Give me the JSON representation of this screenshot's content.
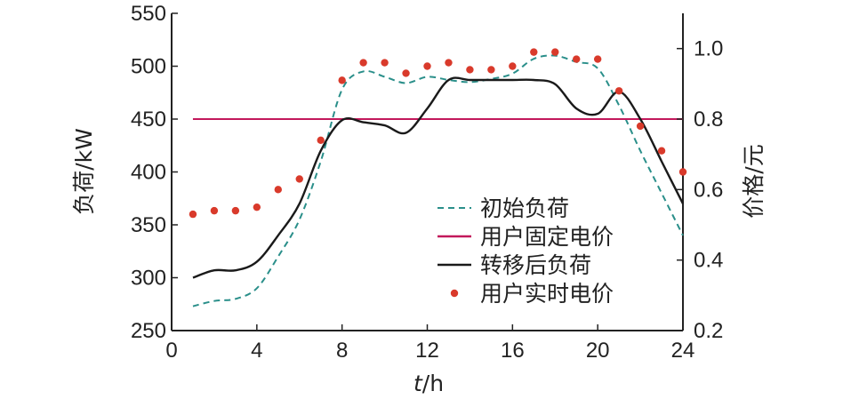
{
  "chart_data": {
    "type": "line",
    "xlabel_italic": "t",
    "xlabel_unit": "/h",
    "ylabel_left": "负荷/kW",
    "ylabel_right": "价格/元",
    "xlim": [
      0,
      24
    ],
    "ylim_left": [
      250,
      550
    ],
    "ylim_right": [
      0.2,
      1.1
    ],
    "xticks": [
      0,
      4,
      8,
      12,
      16,
      20,
      24
    ],
    "yticks_left": [
      250,
      300,
      350,
      400,
      450,
      500,
      550
    ],
    "yticks_right": [
      "0.2",
      "0.4",
      "0.6",
      "0.8",
      "1.0"
    ],
    "x": [
      1,
      2,
      3,
      4,
      5,
      6,
      7,
      8,
      9,
      10,
      11,
      12,
      13,
      14,
      15,
      16,
      17,
      18,
      19,
      20,
      21,
      22,
      23,
      24
    ],
    "series": [
      {
        "name": "初始负荷",
        "axis": "left",
        "style": "dashed",
        "color": "#2a8f8a",
        "values": [
          273,
          278,
          280,
          290,
          320,
          355,
          410,
          478,
          495,
          490,
          484,
          490,
          487,
          485,
          488,
          493,
          507,
          510,
          504,
          498,
          463,
          420,
          380,
          340
        ]
      },
      {
        "name": "用户固定电价",
        "axis": "right",
        "style": "solid",
        "color": "#c2185b",
        "values": [
          0.8,
          0.8,
          0.8,
          0.8,
          0.8,
          0.8,
          0.8,
          0.8,
          0.8,
          0.8,
          0.8,
          0.8,
          0.8,
          0.8,
          0.8,
          0.8,
          0.8,
          0.8,
          0.8,
          0.8,
          0.8,
          0.8,
          0.8,
          0.8
        ]
      },
      {
        "name": "转移后负荷",
        "axis": "left",
        "style": "solid",
        "color": "#1a1a1a",
        "values": [
          300,
          307,
          307,
          315,
          340,
          370,
          420,
          449,
          447,
          444,
          437,
          460,
          487,
          487,
          487,
          487,
          487,
          483,
          460,
          455,
          476,
          450,
          410,
          370
        ]
      },
      {
        "name": "用户实时电价",
        "axis": "right",
        "style": "dots",
        "color": "#d93a2b",
        "values": [
          0.53,
          0.54,
          0.54,
          0.55,
          0.6,
          0.63,
          0.74,
          0.91,
          0.96,
          0.96,
          0.93,
          0.95,
          0.96,
          0.94,
          0.94,
          0.95,
          0.99,
          0.99,
          0.97,
          0.97,
          0.88,
          0.78,
          0.71,
          0.65
        ]
      }
    ],
    "legend_position": "bottom-right",
    "grid": false
  }
}
